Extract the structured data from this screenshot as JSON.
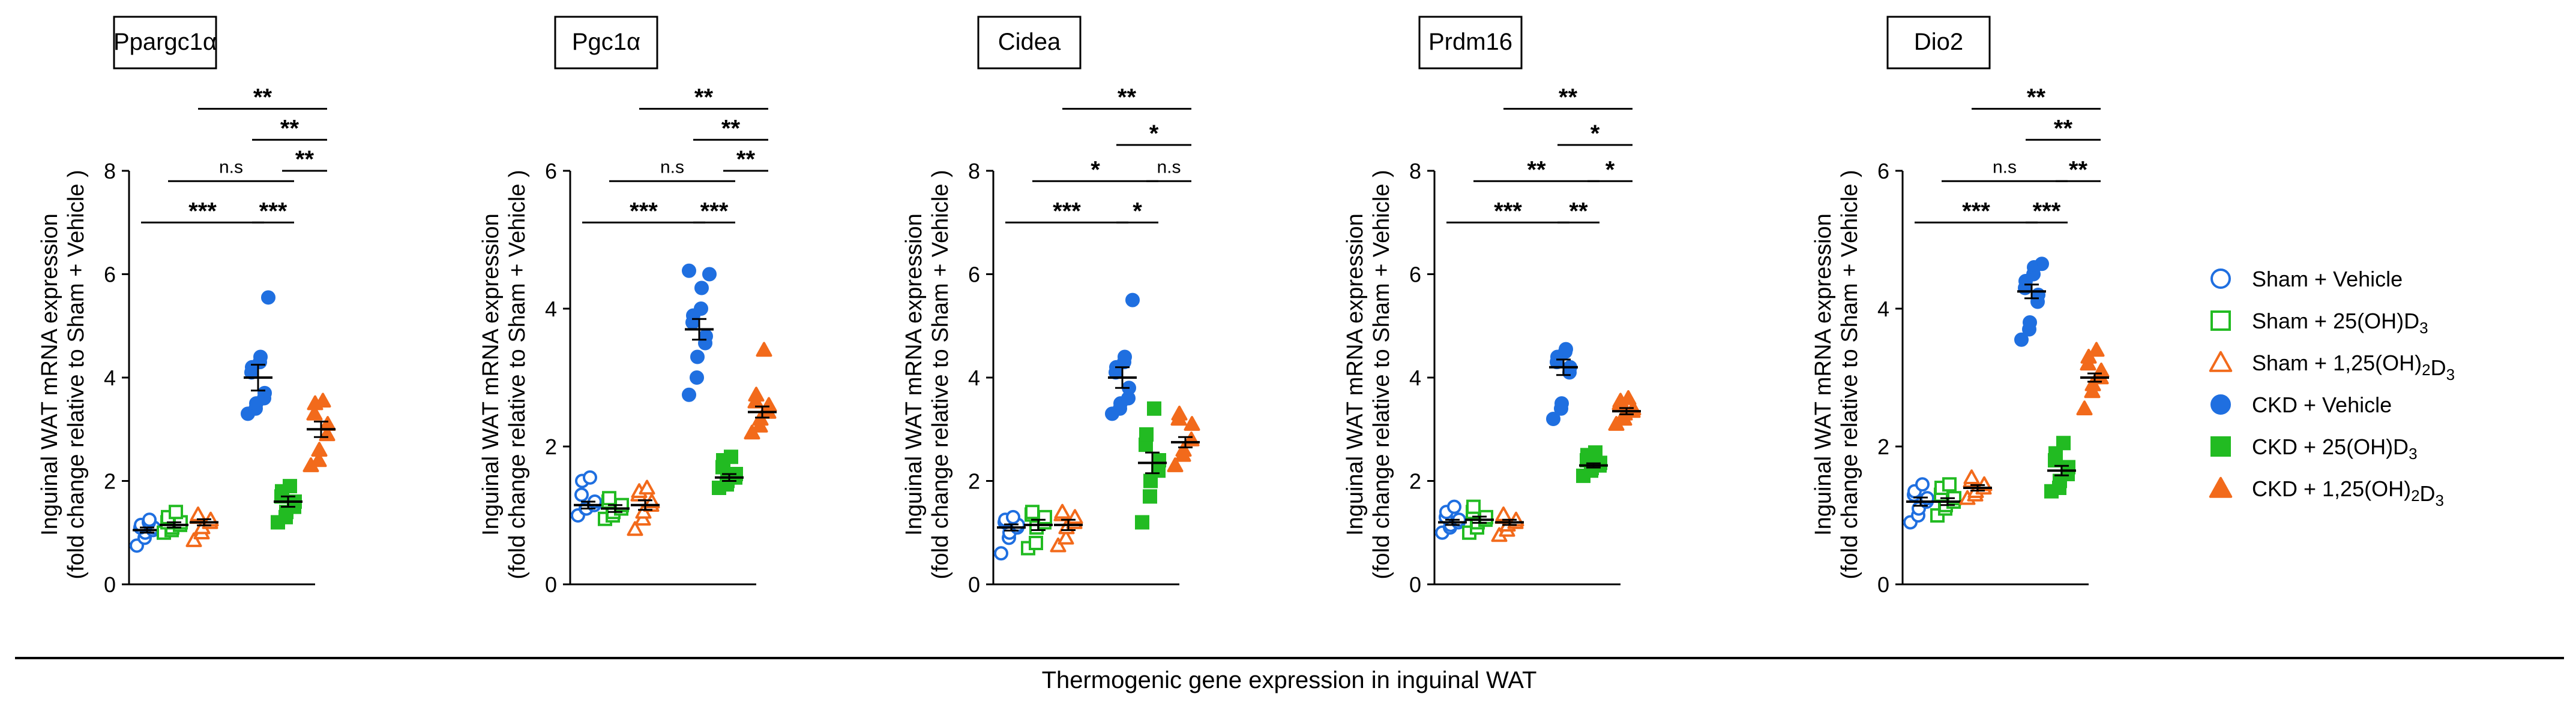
{
  "figure": {
    "footer": "Thermogenic gene expression in inguinal WAT",
    "ylabel_line1": "Inguinal WAT mRNA expression",
    "ylabel_line2": "(fold change relative to Sham + Vehicle )"
  },
  "colors": {
    "sham_vehicle": "#1f6fe0",
    "sham_25": "#22bb22",
    "sham_125": "#f26a1b",
    "ckd_vehicle": "#1f6fe0",
    "ckd_25": "#22bb22",
    "ckd_125": "#f26a1b"
  },
  "legend": [
    {
      "marker": "circle-open",
      "color_key": "sham_vehicle",
      "pre": "Sham + Vehicle"
    },
    {
      "marker": "square-open",
      "color_key": "sham_25",
      "pre": "Sham + 25(OH)D",
      "sub": "3",
      "post": ""
    },
    {
      "marker": "triangle-open",
      "color_key": "sham_125",
      "pre": "Sham + 1,25(OH)",
      "sub": "2",
      "mid": "D",
      "sub2": "3"
    },
    {
      "marker": "circle-filled",
      "color_key": "ckd_vehicle",
      "pre": "CKD + Vehicle"
    },
    {
      "marker": "square-filled",
      "color_key": "ckd_25",
      "pre": "CKD + 25(OH)D",
      "sub": "3",
      "post": ""
    },
    {
      "marker": "triangle-filled",
      "color_key": "ckd_125",
      "pre": "CKD + 1,25(OH)",
      "sub": "2",
      "mid": "D",
      "sub2": "3"
    }
  ],
  "chart_data": [
    {
      "type": "scatter",
      "title": "Ppargc1α",
      "ylim": [
        0,
        8
      ],
      "yticks": [
        "0",
        "2",
        "4",
        "6",
        "8"
      ],
      "groups": [
        {
          "name": "Sham + Vehicle",
          "mean": 1.05,
          "sem": 0.05,
          "points": [
            0.75,
            0.9,
            1.0,
            1.05,
            1.1,
            1.1,
            1.15,
            1.2,
            1.25
          ]
        },
        {
          "name": "Sham + 25(OH)D3",
          "mean": 1.15,
          "sem": 0.05,
          "points": [
            1.0,
            1.05,
            1.1,
            1.15,
            1.2,
            1.2,
            1.3,
            1.4
          ]
        },
        {
          "name": "Sham + 1,25(OH)2D3",
          "mean": 1.2,
          "sem": 0.06,
          "points": [
            0.85,
            1.0,
            1.1,
            1.2,
            1.25,
            1.3,
            1.35
          ]
        },
        {
          "name": "CKD + Vehicle",
          "mean": 4.0,
          "sem": 0.25,
          "points": [
            3.3,
            3.4,
            3.5,
            3.6,
            3.7,
            4.1,
            4.2,
            4.3,
            4.4,
            5.55
          ]
        },
        {
          "name": "CKD + 25(OH)D3",
          "mean": 1.6,
          "sem": 0.1,
          "points": [
            1.2,
            1.3,
            1.4,
            1.5,
            1.6,
            1.7,
            1.8,
            1.9
          ]
        },
        {
          "name": "CKD + 1,25(OH)2D3",
          "mean": 3.0,
          "sem": 0.15,
          "points": [
            2.3,
            2.4,
            2.6,
            2.9,
            3.1,
            3.3,
            3.5,
            3.55
          ]
        }
      ],
      "comparisons": [
        {
          "a": 0,
          "b": 3,
          "label": "***",
          "y": 7.0
        },
        {
          "a": 3,
          "b": 4,
          "label": "***",
          "y": 7.0
        },
        {
          "a": 1,
          "b": 4,
          "label": "n.s",
          "y": 7.8
        },
        {
          "a": 4,
          "b": 5,
          "label": "**",
          "y": 8.0
        },
        {
          "a": 3,
          "b": 5,
          "label": "**",
          "y": 8.6
        },
        {
          "a": 2,
          "b": 5,
          "label": "**",
          "y": 9.2
        }
      ]
    },
    {
      "type": "scatter",
      "title": "Pgc1α",
      "ylim": [
        0,
        6
      ],
      "yticks": [
        "0",
        "2",
        "4",
        "6"
      ],
      "groups": [
        {
          "name": "Sham + Vehicle",
          "mean": 1.15,
          "sem": 0.05,
          "points": [
            1.0,
            1.1,
            1.1,
            1.15,
            1.2,
            1.3,
            1.5,
            1.55
          ]
        },
        {
          "name": "Sham + 25(OH)D3",
          "mean": 1.1,
          "sem": 0.05,
          "points": [
            0.95,
            1.0,
            1.05,
            1.1,
            1.15,
            1.2,
            1.25
          ]
        },
        {
          "name": "Sham + 1,25(OH)2D3",
          "mean": 1.15,
          "sem": 0.07,
          "points": [
            0.8,
            0.95,
            1.05,
            1.15,
            1.2,
            1.3,
            1.35,
            1.4
          ]
        },
        {
          "name": "CKD + Vehicle",
          "mean": 3.7,
          "sem": 0.15,
          "points": [
            2.75,
            3.0,
            3.3,
            3.5,
            3.6,
            3.8,
            3.9,
            4.0,
            4.3,
            4.5,
            4.55
          ]
        },
        {
          "name": "CKD + 25(OH)D3",
          "mean": 1.55,
          "sem": 0.05,
          "points": [
            1.4,
            1.45,
            1.5,
            1.55,
            1.6,
            1.7,
            1.8,
            1.85
          ]
        },
        {
          "name": "CKD + 1,25(OH)2D3",
          "mean": 2.5,
          "sem": 0.08,
          "points": [
            2.2,
            2.3,
            2.4,
            2.5,
            2.6,
            2.65,
            2.75,
            3.4
          ]
        }
      ],
      "comparisons": [
        {
          "a": 0,
          "b": 3,
          "label": "***",
          "y": 5.25
        },
        {
          "a": 3,
          "b": 4,
          "label": "***",
          "y": 5.25
        },
        {
          "a": 1,
          "b": 4,
          "label": "n.s",
          "y": 5.85
        },
        {
          "a": 4,
          "b": 5,
          "label": "**",
          "y": 6.0
        },
        {
          "a": 3,
          "b": 5,
          "label": "**",
          "y": 6.45
        },
        {
          "a": 2,
          "b": 5,
          "label": "**",
          "y": 6.9
        }
      ]
    },
    {
      "type": "scatter",
      "title": "Cidea",
      "ylim": [
        0,
        8
      ],
      "yticks": [
        "0",
        "2",
        "4",
        "6",
        "8"
      ],
      "groups": [
        {
          "name": "Sham + Vehicle",
          "mean": 1.1,
          "sem": 0.06,
          "points": [
            0.6,
            0.9,
            1.0,
            1.1,
            1.15,
            1.2,
            1.25,
            1.3
          ]
        },
        {
          "name": "Sham + 25(OH)D3",
          "mean": 1.15,
          "sem": 0.1,
          "points": [
            0.7,
            0.8,
            1.1,
            1.2,
            1.3,
            1.35,
            1.4
          ]
        },
        {
          "name": "Sham + 1,25(OH)2D3",
          "mean": 1.15,
          "sem": 0.1,
          "points": [
            0.75,
            0.9,
            1.1,
            1.2,
            1.3,
            1.35,
            1.4
          ]
        },
        {
          "name": "CKD + Vehicle",
          "mean": 4.0,
          "sem": 0.2,
          "points": [
            3.3,
            3.4,
            3.5,
            3.6,
            3.8,
            4.1,
            4.2,
            4.3,
            4.4,
            5.5
          ]
        },
        {
          "name": "CKD + 25(OH)D3",
          "mean": 2.35,
          "sem": 0.2,
          "points": [
            1.2,
            1.7,
            2.0,
            2.2,
            2.4,
            2.7,
            2.9,
            3.4
          ]
        },
        {
          "name": "CKD + 1,25(OH)2D3",
          "mean": 2.75,
          "sem": 0.1,
          "points": [
            2.3,
            2.5,
            2.6,
            2.8,
            3.1,
            3.2,
            3.3
          ]
        }
      ],
      "comparisons": [
        {
          "a": 0,
          "b": 3,
          "label": "***",
          "y": 7.0
        },
        {
          "a": 3,
          "b": 4,
          "label": "*",
          "y": 7.0
        },
        {
          "a": 1,
          "b": 4,
          "label": "*",
          "y": 7.8
        },
        {
          "a": 4,
          "b": 5,
          "label": "n.s",
          "y": 7.8
        },
        {
          "a": 3,
          "b": 5,
          "label": "*",
          "y": 8.5
        },
        {
          "a": 2,
          "b": 5,
          "label": "**",
          "y": 9.2
        }
      ]
    },
    {
      "type": "scatter",
      "title": "Prdm16",
      "ylim": [
        0,
        8
      ],
      "yticks": [
        "0",
        "2",
        "4",
        "6",
        "8"
      ],
      "groups": [
        {
          "name": "Sham + Vehicle",
          "mean": 1.2,
          "sem": 0.05,
          "points": [
            1.0,
            1.1,
            1.15,
            1.2,
            1.25,
            1.3,
            1.4,
            1.5
          ]
        },
        {
          "name": "Sham + 25(OH)D3",
          "mean": 1.25,
          "sem": 0.06,
          "points": [
            1.0,
            1.1,
            1.2,
            1.25,
            1.3,
            1.4,
            1.5
          ]
        },
        {
          "name": "Sham + 1,25(OH)2D3",
          "mean": 1.2,
          "sem": 0.05,
          "points": [
            0.95,
            1.05,
            1.15,
            1.2,
            1.25,
            1.3,
            1.35
          ]
        },
        {
          "name": "CKD + Vehicle",
          "mean": 4.2,
          "sem": 0.15,
          "points": [
            3.2,
            3.4,
            3.5,
            4.1,
            4.2,
            4.3,
            4.4,
            4.5,
            4.55
          ]
        },
        {
          "name": "CKD + 25(OH)D3",
          "mean": 2.3,
          "sem": 0.04,
          "points": [
            2.1,
            2.2,
            2.25,
            2.3,
            2.35,
            2.4,
            2.5,
            2.55
          ]
        },
        {
          "name": "CKD + 1,25(OH)2D3",
          "mean": 3.35,
          "sem": 0.06,
          "points": [
            3.1,
            3.2,
            3.3,
            3.35,
            3.4,
            3.5,
            3.55,
            3.6
          ]
        }
      ],
      "comparisons": [
        {
          "a": 0,
          "b": 3,
          "label": "***",
          "y": 7.0
        },
        {
          "a": 3,
          "b": 4,
          "label": "**",
          "y": 7.0
        },
        {
          "a": 1,
          "b": 4,
          "label": "**",
          "y": 7.8
        },
        {
          "a": 4,
          "b": 5,
          "label": "*",
          "y": 7.8
        },
        {
          "a": 3,
          "b": 5,
          "label": "*",
          "y": 8.5
        },
        {
          "a": 2,
          "b": 5,
          "label": "**",
          "y": 9.2
        }
      ]
    },
    {
      "type": "scatter",
      "title": "Dio2",
      "ylim": [
        0,
        6
      ],
      "yticks": [
        "0",
        "2",
        "4",
        "6"
      ],
      "groups": [
        {
          "name": "Sham + Vehicle",
          "mean": 1.2,
          "sem": 0.06,
          "points": [
            0.9,
            1.0,
            1.1,
            1.2,
            1.25,
            1.3,
            1.35,
            1.45
          ]
        },
        {
          "name": "Sham + 25(OH)D3",
          "mean": 1.2,
          "sem": 0.05,
          "points": [
            1.0,
            1.1,
            1.15,
            1.2,
            1.25,
            1.3,
            1.4,
            1.45
          ]
        },
        {
          "name": "Sham + 1,25(OH)2D3",
          "mean": 1.4,
          "sem": 0.04,
          "points": [
            1.25,
            1.3,
            1.35,
            1.4,
            1.45,
            1.5,
            1.55
          ]
        },
        {
          "name": "CKD + Vehicle",
          "mean": 4.25,
          "sem": 0.1,
          "points": [
            3.55,
            3.7,
            3.8,
            4.1,
            4.2,
            4.3,
            4.4,
            4.5,
            4.6,
            4.65
          ]
        },
        {
          "name": "CKD + 25(OH)D3",
          "mean": 1.65,
          "sem": 0.07,
          "points": [
            1.35,
            1.4,
            1.5,
            1.6,
            1.7,
            1.8,
            1.9,
            2.05
          ]
        },
        {
          "name": "CKD + 1,25(OH)2D3",
          "mean": 3.0,
          "sem": 0.06,
          "points": [
            2.55,
            2.8,
            2.9,
            3.0,
            3.1,
            3.2,
            3.3,
            3.4
          ]
        }
      ],
      "comparisons": [
        {
          "a": 0,
          "b": 3,
          "label": "***",
          "y": 5.25
        },
        {
          "a": 3,
          "b": 4,
          "label": "***",
          "y": 5.25
        },
        {
          "a": 1,
          "b": 4,
          "label": "n.s",
          "y": 5.85
        },
        {
          "a": 4,
          "b": 5,
          "label": "**",
          "y": 5.85
        },
        {
          "a": 3,
          "b": 5,
          "label": "**",
          "y": 6.45
        },
        {
          "a": 2,
          "b": 5,
          "label": "**",
          "y": 6.9
        }
      ]
    }
  ]
}
